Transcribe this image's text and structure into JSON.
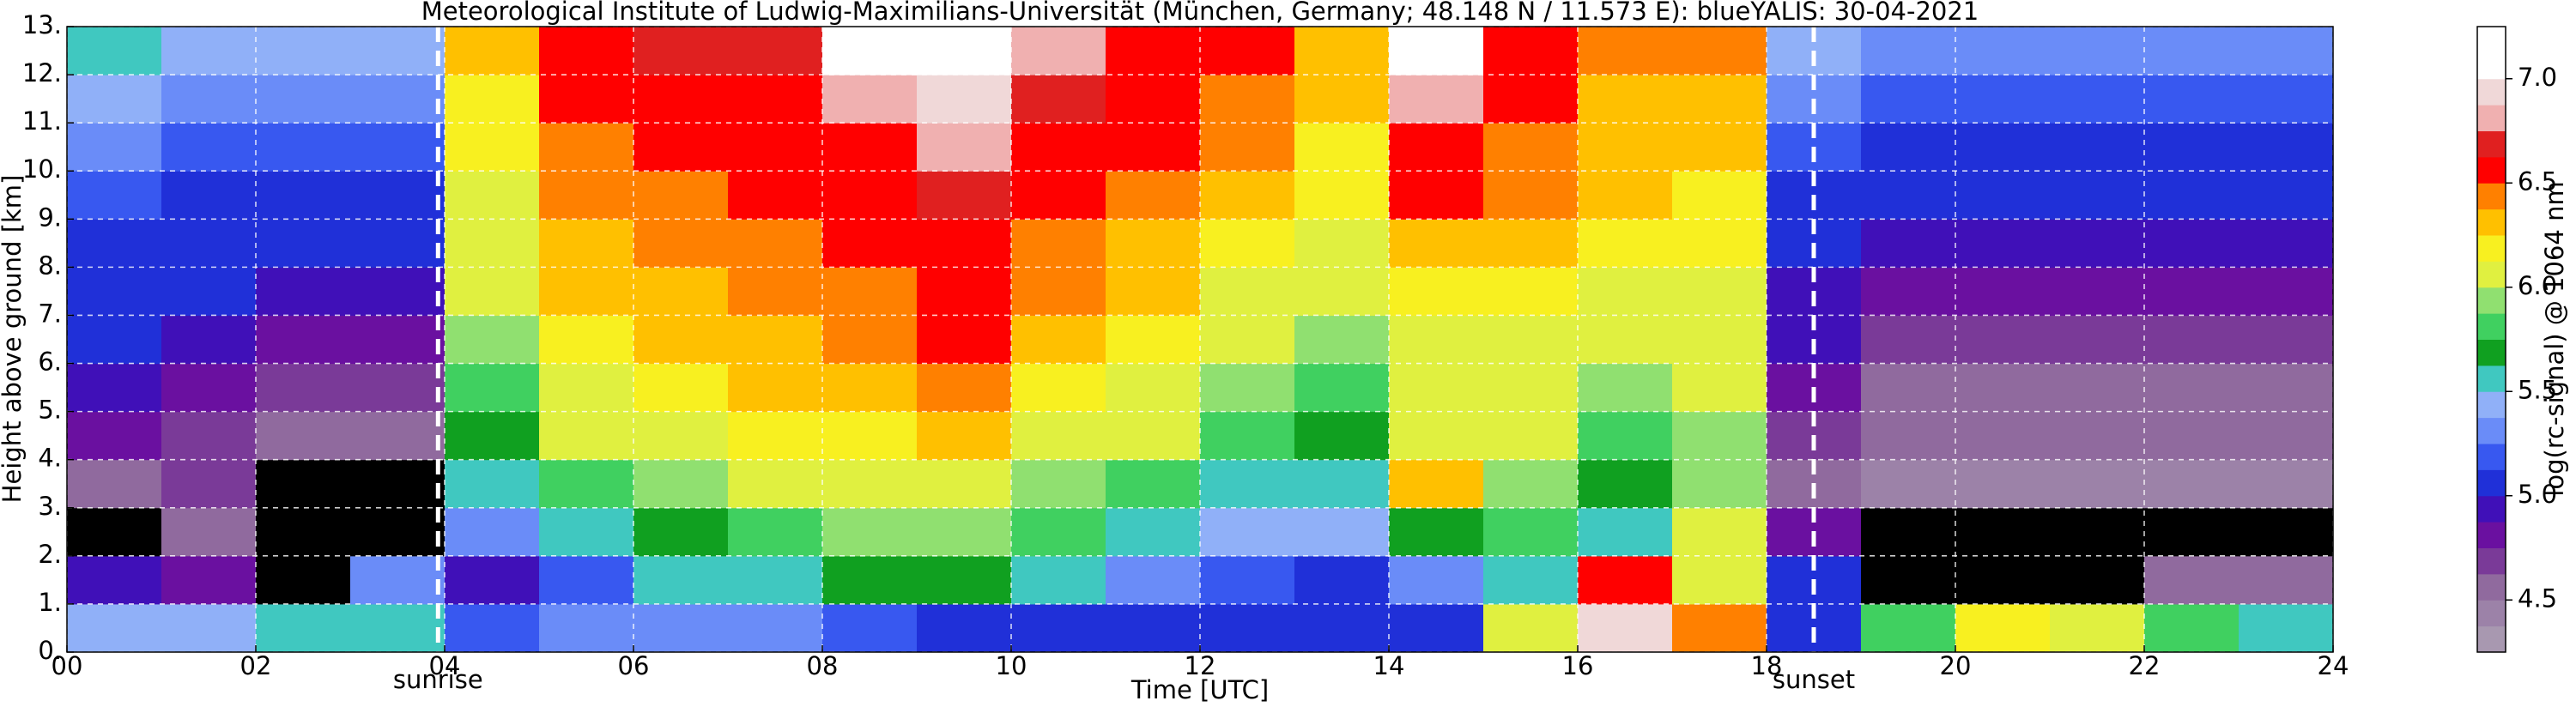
{
  "chart_data": {
    "type": "heatmap",
    "title": "Meteorological Institute of Ludwig-Maximilians-Universität (München, Germany; 48.148 N / 11.573 E):    blueYALIS: 30-04-2021",
    "x_label": "Time [UTC]",
    "y_label": "Height above ground [km]",
    "colorbar_label": "log(rc-signal) @ 1064 nm",
    "x": [
      0,
      1,
      2,
      3,
      4,
      5,
      6,
      7,
      8,
      9,
      10,
      11,
      12,
      13,
      14,
      15,
      16,
      17,
      18,
      19,
      20,
      21,
      22,
      23,
      24
    ],
    "y": [
      0,
      1,
      2,
      3,
      4,
      5,
      6,
      7,
      8,
      9,
      10,
      11,
      12,
      13
    ],
    "z": [
      [
        5.4,
        5.4,
        5.5,
        5.6,
        5.2,
        5.3,
        5.3,
        5.3,
        5.2,
        5.1,
        5.0,
        5.0,
        5.0,
        5.0,
        5.0,
        6.0,
        6.9,
        6.4,
        5.0,
        5.8,
        6.2,
        6.0,
        5.8,
        5.6
      ],
      [
        4.9,
        4.8,
        4.2,
        5.3,
        4.9,
        5.2,
        5.5,
        5.6,
        5.7,
        5.7,
        5.5,
        5.3,
        5.2,
        5.1,
        5.3,
        5.6,
        6.6,
        6.0,
        5.0,
        4.2,
        4.2,
        4.2,
        4.6,
        4.6
      ],
      [
        4.2,
        4.6,
        4.2,
        4.2,
        5.3,
        5.6,
        5.7,
        5.8,
        5.9,
        5.9,
        5.8,
        5.6,
        5.4,
        5.4,
        5.7,
        5.8,
        5.6,
        6.0,
        4.8,
        4.2,
        4.2,
        4.2,
        4.2,
        4.2
      ],
      [
        4.6,
        4.7,
        4.2,
        4.2,
        5.5,
        5.8,
        5.9,
        6.0,
        6.0,
        6.1,
        5.9,
        5.8,
        5.6,
        5.6,
        6.3,
        5.9,
        5.7,
        5.9,
        4.6,
        4.4,
        4.4,
        4.4,
        4.4,
        4.4
      ],
      [
        4.8,
        4.7,
        4.5,
        4.5,
        5.7,
        6.0,
        6.1,
        6.2,
        6.2,
        6.3,
        6.1,
        6.0,
        5.8,
        5.7,
        6.0,
        6.0,
        5.8,
        5.9,
        4.7,
        4.5,
        4.5,
        4.5,
        4.5,
        4.5
      ],
      [
        4.9,
        4.8,
        4.7,
        4.7,
        5.8,
        6.1,
        6.2,
        6.3,
        6.3,
        6.4,
        6.2,
        6.1,
        5.9,
        5.8,
        6.0,
        6.0,
        5.9,
        6.0,
        4.8,
        4.6,
        4.6,
        4.6,
        4.6,
        4.6
      ],
      [
        5.0,
        4.9,
        4.8,
        4.8,
        5.9,
        6.2,
        6.3,
        6.3,
        6.4,
        6.5,
        6.3,
        6.2,
        6.0,
        5.9,
        6.1,
        6.1,
        6.0,
        6.1,
        4.9,
        4.7,
        4.7,
        4.7,
        4.7,
        4.7
      ],
      [
        5.0,
        5.0,
        4.9,
        4.9,
        6.0,
        6.3,
        6.3,
        6.4,
        6.4,
        6.5,
        6.4,
        6.3,
        6.1,
        6.0,
        6.2,
        6.2,
        6.1,
        6.1,
        4.9,
        4.8,
        4.8,
        4.8,
        4.8,
        4.8
      ],
      [
        5.1,
        5.0,
        5.0,
        5.0,
        6.0,
        6.3,
        6.4,
        6.4,
        6.5,
        6.6,
        6.4,
        6.3,
        6.2,
        6.1,
        6.3,
        6.3,
        6.2,
        6.2,
        5.0,
        4.9,
        4.9,
        4.9,
        4.9,
        4.9
      ],
      [
        5.2,
        5.1,
        5.1,
        5.1,
        6.1,
        6.4,
        6.4,
        6.5,
        6.5,
        6.7,
        6.5,
        6.4,
        6.3,
        6.2,
        6.5,
        6.4,
        6.3,
        6.2,
        5.1,
        5.0,
        5.0,
        5.0,
        5.0,
        5.0
      ],
      [
        5.3,
        5.2,
        5.2,
        5.2,
        6.2,
        6.4,
        6.5,
        6.5,
        6.6,
        6.8,
        6.6,
        6.5,
        6.4,
        6.2,
        6.6,
        6.4,
        6.3,
        6.3,
        5.2,
        5.1,
        5.1,
        5.1,
        5.1,
        5.1
      ],
      [
        5.4,
        5.3,
        5.3,
        5.3,
        6.2,
        6.5,
        6.6,
        6.6,
        6.8,
        6.9,
        6.7,
        6.6,
        6.4,
        6.3,
        6.8,
        6.5,
        6.3,
        6.3,
        5.3,
        5.2,
        5.2,
        5.2,
        5.2,
        5.2
      ],
      [
        5.5,
        5.4,
        5.4,
        5.4,
        6.3,
        6.5,
        6.7,
        6.7,
        7.0,
        7.0,
        6.8,
        6.6,
        6.5,
        6.3,
        7.0,
        6.6,
        6.4,
        6.4,
        5.4,
        5.3,
        5.3,
        5.3,
        5.3,
        5.3
      ]
    ],
    "xlim": [
      0,
      24
    ],
    "xticks": [
      {
        "value": 0,
        "label": "00"
      },
      {
        "value": 2,
        "label": "02"
      },
      {
        "value": 4,
        "label": "04"
      },
      {
        "value": 6,
        "label": "06"
      },
      {
        "value": 8,
        "label": "08"
      },
      10,
      12,
      14,
      16,
      18,
      20,
      22,
      24
    ],
    "ylim": [
      0,
      13
    ],
    "yticks": [
      {
        "value": 0,
        "label": "0."
      },
      {
        "value": 1,
        "label": "1."
      },
      {
        "value": 2,
        "label": "2."
      },
      {
        "value": 3,
        "label": "3."
      },
      {
        "value": 4,
        "label": "4."
      },
      {
        "value": 5,
        "label": "5."
      },
      {
        "value": 6,
        "label": "6."
      },
      {
        "value": 7,
        "label": "7."
      },
      {
        "value": 8,
        "label": "8."
      },
      {
        "value": 9,
        "label": "9."
      },
      {
        "value": 10,
        "label": "10."
      },
      {
        "value": 11,
        "label": "11."
      },
      {
        "value": 12,
        "label": "12."
      },
      {
        "value": 13,
        "label": "13."
      }
    ],
    "clim": [
      4.25,
      7.25
    ],
    "cticks": [
      4.5,
      {
        "value": 5,
        "label": "5.0"
      },
      5.5,
      {
        "value": 6,
        "label": "6.0"
      },
      6.5,
      {
        "value": 7,
        "label": "7.0"
      }
    ],
    "colorscale": [
      "#a898b0",
      "#9c82a8",
      "#906a9e",
      "#7a3a98",
      "#6a10a0",
      "#4010b8",
      "#2030d8",
      "#3858f0",
      "#6a8cf8",
      "#90b0f8",
      "#40c8c0",
      "#10a020",
      "#40d060",
      "#90e070",
      "#e0f040",
      "#f8f020",
      "#ffc000",
      "#ff8000",
      "#ff0000",
      "#e02020",
      "#f0b0b0",
      "#f0d8d8",
      "#ffffff",
      "#ffffff"
    ],
    "under_color": "#000000",
    "grid": true,
    "annotations": [
      {
        "text": "sunrise",
        "x": 3.93
      },
      {
        "text": "sunset",
        "x": 18.5
      }
    ]
  }
}
